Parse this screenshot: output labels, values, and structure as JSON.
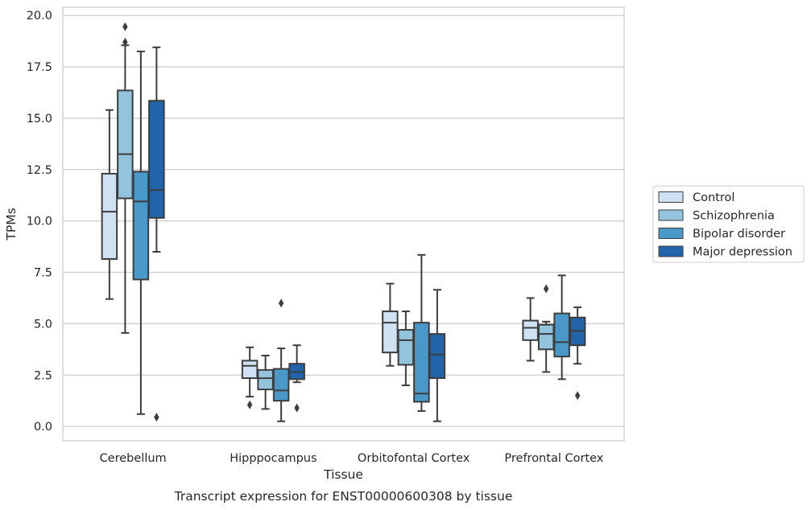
{
  "chart_data": {
    "type": "box",
    "xlabel": "Tissue",
    "ylabel": "TPMs",
    "caption": "Transcript expression for ENST00000600308 by tissue",
    "ylim": [
      -0.7,
      20.4
    ],
    "yticks": [
      "0.0",
      "2.5",
      "5.0",
      "7.5",
      "10.0",
      "12.5",
      "15.0",
      "17.5",
      "20.0"
    ],
    "grid": "horizontal",
    "legend_position": "right",
    "categories": [
      "Cerebellum",
      "Hipppocampus",
      "Orbitofontal Cortex",
      "Prefrontal Cortex"
    ],
    "series": [
      {
        "name": "Control",
        "color": "#cfe1f2",
        "boxes": [
          {
            "whisker_low": 6.2,
            "q1": 8.15,
            "median": 10.45,
            "q3": 12.3,
            "whisker_high": 15.4,
            "outliers": []
          },
          {
            "whisker_low": 1.45,
            "q1": 2.35,
            "median": 2.95,
            "q3": 3.2,
            "whisker_high": 3.85,
            "outliers": [
              1.05
            ]
          },
          {
            "whisker_low": 2.95,
            "q1": 3.6,
            "median": 5.05,
            "q3": 5.6,
            "whisker_high": 6.95,
            "outliers": []
          },
          {
            "whisker_low": 3.2,
            "q1": 4.2,
            "median": 4.8,
            "q3": 5.15,
            "whisker_high": 6.25,
            "outliers": []
          }
        ]
      },
      {
        "name": "Schizophrenia",
        "color": "#93c4de",
        "boxes": [
          {
            "whisker_low": 4.55,
            "q1": 11.1,
            "median": 13.25,
            "q3": 16.35,
            "whisker_high": 18.55,
            "outliers": [
              18.7,
              19.45
            ]
          },
          {
            "whisker_low": 0.85,
            "q1": 1.8,
            "median": 2.35,
            "q3": 2.75,
            "whisker_high": 3.45,
            "outliers": []
          },
          {
            "whisker_low": 2.0,
            "q1": 3.0,
            "median": 4.2,
            "q3": 4.7,
            "whisker_high": 5.6,
            "outliers": []
          },
          {
            "whisker_low": 2.65,
            "q1": 3.75,
            "median": 4.5,
            "q3": 4.95,
            "whisker_high": 5.1,
            "outliers": [
              6.7
            ]
          }
        ]
      },
      {
        "name": "Bipolar disorder",
        "color": "#4a98c9",
        "boxes": [
          {
            "whisker_low": 0.6,
            "q1": 7.15,
            "median": 10.95,
            "q3": 12.4,
            "whisker_high": 18.25,
            "outliers": []
          },
          {
            "whisker_low": 0.25,
            "q1": 1.25,
            "median": 1.75,
            "q3": 2.8,
            "whisker_high": 3.8,
            "outliers": [
              6.0
            ]
          },
          {
            "whisker_low": 0.75,
            "q1": 1.2,
            "median": 1.6,
            "q3": 5.05,
            "whisker_high": 8.35,
            "outliers": []
          },
          {
            "whisker_low": 2.3,
            "q1": 3.4,
            "median": 4.1,
            "q3": 5.5,
            "whisker_high": 7.35,
            "outliers": []
          }
        ]
      },
      {
        "name": "Major depression",
        "color": "#2164ab",
        "boxes": [
          {
            "whisker_low": 8.5,
            "q1": 10.15,
            "median": 11.5,
            "q3": 15.85,
            "whisker_high": 18.45,
            "outliers": [
              0.45
            ]
          },
          {
            "whisker_low": 2.15,
            "q1": 2.3,
            "median": 2.65,
            "q3": 3.05,
            "whisker_high": 3.95,
            "outliers": [
              0.9
            ]
          },
          {
            "whisker_low": 0.25,
            "q1": 2.35,
            "median": 3.5,
            "q3": 4.5,
            "whisker_high": 6.65,
            "outliers": []
          },
          {
            "whisker_low": 3.05,
            "q1": 3.95,
            "median": 4.65,
            "q3": 5.3,
            "whisker_high": 5.8,
            "outliers": [
              1.5
            ]
          }
        ]
      }
    ]
  }
}
